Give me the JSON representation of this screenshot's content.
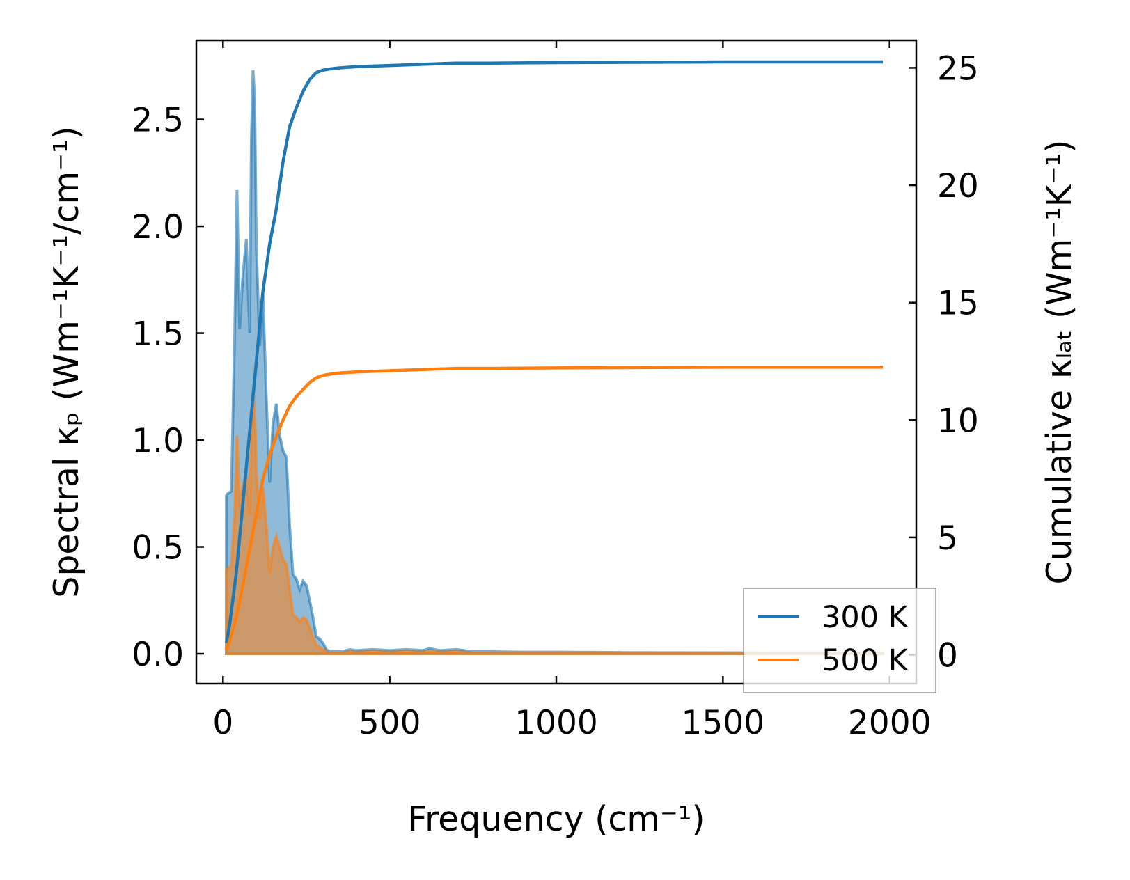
{
  "chart_data": {
    "type": "line",
    "xlabel": "Frequency (cm⁻¹)",
    "ylabel_left": "Spectral κₚ (Wm⁻¹K⁻¹/cm⁻¹)",
    "ylabel_right": "Cumulative κₗₐₜ (Wm⁻¹K⁻¹)",
    "xlim": [
      -80,
      2080
    ],
    "ylim_left": [
      -0.14,
      2.87
    ],
    "ylim_right": [
      -1.23,
      26.17
    ],
    "x_ticks": [
      0,
      500,
      1000,
      1500,
      2000
    ],
    "y_left_ticks": [
      0.0,
      0.5,
      1.0,
      1.5,
      2.0,
      2.5
    ],
    "y_right_ticks": [
      0,
      5,
      10,
      15,
      20,
      25
    ],
    "x_tick_labels": [
      "0",
      "500",
      "1000",
      "1500",
      "2000"
    ],
    "y_left_tick_labels": [
      "0.0",
      "0.5",
      "1.0",
      "1.5",
      "2.0",
      "2.5"
    ],
    "y_right_tick_labels": [
      "0",
      "5",
      "10",
      "15",
      "20",
      "25"
    ],
    "legend_position": "lower-right",
    "grid": false,
    "spectral_series": [
      {
        "name": "300 K",
        "color": "#1f77b4",
        "x": [
          10,
          15,
          25,
          35,
          42,
          50,
          60,
          70,
          80,
          85,
          90,
          95,
          100,
          110,
          120,
          130,
          140,
          150,
          160,
          170,
          180,
          190,
          200,
          210,
          220,
          230,
          240,
          250,
          260,
          270,
          280,
          290,
          300,
          310,
          320,
          330,
          340,
          350,
          360,
          380,
          400,
          450,
          500,
          550,
          600,
          620,
          650,
          700,
          750,
          800,
          900,
          1000,
          1200,
          1500,
          1800,
          1980
        ],
        "y": [
          0.74,
          0.75,
          0.76,
          1.5,
          2.17,
          1.52,
          1.78,
          1.94,
          1.5,
          2.4,
          2.73,
          2.6,
          1.9,
          1.44,
          1.68,
          1.2,
          0.8,
          1.08,
          1.17,
          1.02,
          0.95,
          0.92,
          0.6,
          0.37,
          0.35,
          0.3,
          0.34,
          0.32,
          0.25,
          0.17,
          0.08,
          0.07,
          0.05,
          0.02,
          0.01,
          0.01,
          0.01,
          0.01,
          0.01,
          0.02,
          0.015,
          0.02,
          0.015,
          0.02,
          0.015,
          0.025,
          0.015,
          0.02,
          0.01,
          0.01,
          0.008,
          0.008,
          0.006,
          0.005,
          0.004,
          0.004
        ]
      },
      {
        "name": "500 K",
        "color": "#ff7f0e",
        "x": [
          10,
          15,
          25,
          35,
          42,
          50,
          60,
          70,
          80,
          85,
          90,
          95,
          100,
          110,
          120,
          130,
          140,
          150,
          160,
          170,
          180,
          190,
          200,
          210,
          220,
          230,
          240,
          250,
          260,
          270,
          280,
          290,
          300,
          310,
          320,
          330,
          340,
          350,
          360,
          380,
          400,
          450,
          500,
          550,
          600,
          620,
          650,
          700,
          750,
          800,
          900,
          1000,
          1200,
          1500,
          1800,
          1980
        ],
        "y": [
          0.39,
          0.4,
          0.41,
          0.65,
          1.02,
          0.68,
          0.78,
          0.86,
          0.65,
          1.02,
          1.23,
          1.15,
          0.85,
          0.63,
          0.78,
          0.6,
          0.38,
          0.5,
          0.55,
          0.5,
          0.44,
          0.42,
          0.3,
          0.18,
          0.17,
          0.15,
          0.17,
          0.16,
          0.12,
          0.08,
          0.04,
          0.03,
          0.02,
          0.01,
          0.005,
          0.005,
          0.005,
          0.005,
          0.005,
          0.01,
          0.008,
          0.01,
          0.008,
          0.01,
          0.008,
          0.012,
          0.008,
          0.01,
          0.005,
          0.005,
          0.004,
          0.004,
          0.003,
          0.003,
          0.002,
          0.002
        ]
      }
    ],
    "cumulative_series": [
      {
        "name": "300 K",
        "color": "#1f77b4",
        "x": [
          10,
          20,
          40,
          60,
          80,
          100,
          120,
          140,
          160,
          180,
          200,
          220,
          240,
          260,
          280,
          300,
          320,
          350,
          400,
          500,
          600,
          700,
          800,
          1000,
          1500,
          1980
        ],
        "y": [
          0.5,
          1.3,
          3.5,
          6.5,
          9.5,
          12.5,
          15.5,
          17.5,
          19.0,
          21.0,
          22.5,
          23.3,
          24.0,
          24.5,
          24.8,
          24.9,
          24.95,
          25.0,
          25.05,
          25.1,
          25.15,
          25.2,
          25.2,
          25.22,
          25.25,
          25.25
        ]
      },
      {
        "name": "500 K",
        "color": "#ff7f0e",
        "x": [
          10,
          20,
          40,
          60,
          80,
          100,
          120,
          140,
          160,
          180,
          200,
          220,
          240,
          260,
          280,
          300,
          320,
          350,
          400,
          500,
          600,
          700,
          800,
          1000,
          1500,
          1980
        ],
        "y": [
          0.2,
          0.6,
          1.6,
          3.0,
          4.5,
          6.0,
          7.5,
          8.5,
          9.3,
          10.0,
          10.6,
          11.0,
          11.3,
          11.6,
          11.8,
          11.9,
          11.95,
          12.0,
          12.05,
          12.1,
          12.15,
          12.2,
          12.2,
          12.22,
          12.25,
          12.25
        ]
      }
    ],
    "legend": [
      {
        "label": "300 K",
        "color": "#1f77b4"
      },
      {
        "label": "500 K",
        "color": "#ff7f0e"
      }
    ]
  }
}
